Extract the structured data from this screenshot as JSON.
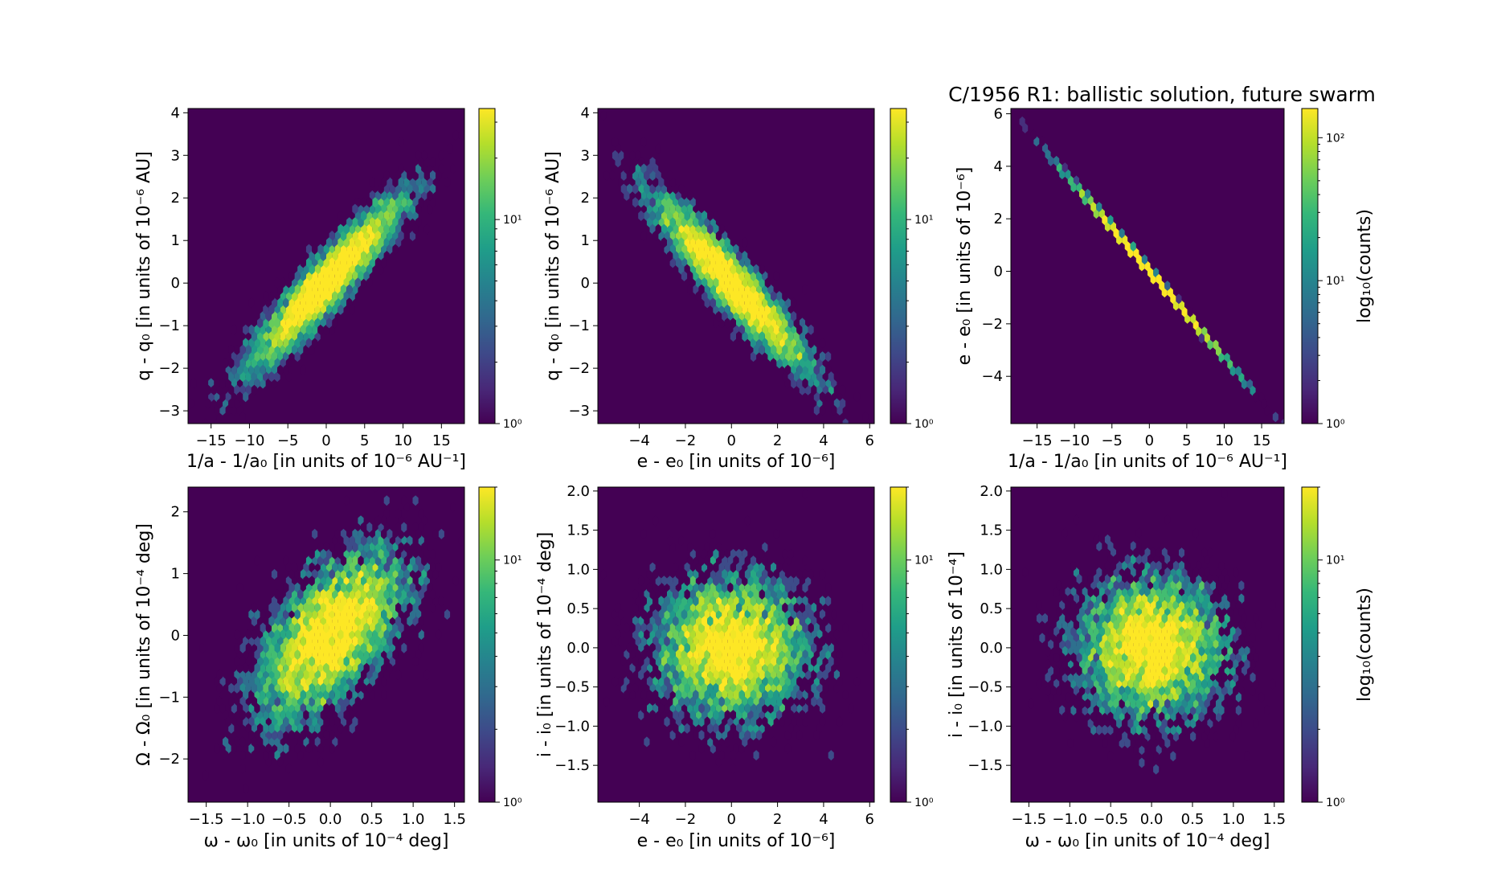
{
  "figure": {
    "title": "C/1956 R1:  ballistic solution, future swarm"
  },
  "colors": {
    "background": "#440154",
    "colormap": [
      "#440154",
      "#482878",
      "#3e4989",
      "#31688e",
      "#26828e",
      "#1f9e89",
      "#35b779",
      "#6ece58",
      "#b5de2b",
      "#fde725"
    ]
  },
  "chart_data": [
    {
      "type": "heatmap",
      "subtype": "hexbin",
      "panel": "top-left",
      "xlabel": "1/a - 1/a₀ [in units of 10⁻⁶ AU⁻¹]",
      "ylabel": "q - q₀ [in units of 10⁻⁶ AU]",
      "xlim": [
        -18,
        18
      ],
      "ylim": [
        -3.3,
        4.1
      ],
      "xticks": [
        -15,
        -10,
        -5,
        0,
        5,
        10,
        15
      ],
      "xtick_labels": [
        "−15",
        "−10",
        "−5",
        "0",
        "5",
        "10",
        "15"
      ],
      "yticks": [
        -3,
        -2,
        -1,
        0,
        1,
        2,
        3,
        4
      ],
      "ytick_labels": [
        "−3",
        "−2",
        "−1",
        "0",
        "1",
        "2",
        "3",
        "4"
      ],
      "distribution": {
        "x_mean": 0,
        "y_mean": 0,
        "x_sd": 5.0,
        "y_sd": 1.0,
        "correlation": 0.93
      },
      "colorbar": {
        "scale": "log",
        "min": 1,
        "max": 35,
        "ticks": [
          1,
          10
        ],
        "tick_labels": [
          "10⁰",
          "10¹"
        ],
        "label": ""
      }
    },
    {
      "type": "heatmap",
      "subtype": "hexbin",
      "panel": "top-middle",
      "xlabel": "e - e₀ [in units of 10⁻⁶]",
      "ylabel": "q - q₀ [in units of 10⁻⁶ AU]",
      "xlim": [
        -5.8,
        6.2
      ],
      "ylim": [
        -3.3,
        4.1
      ],
      "xticks": [
        -4,
        -2,
        0,
        2,
        4,
        6
      ],
      "xtick_labels": [
        "−4",
        "−2",
        "0",
        "2",
        "4",
        "6"
      ],
      "yticks": [
        -3,
        -2,
        -1,
        0,
        1,
        2,
        3,
        4
      ],
      "ytick_labels": [
        "−3",
        "−2",
        "−1",
        "0",
        "1",
        "2",
        "3",
        "4"
      ],
      "distribution": {
        "x_mean": 0,
        "y_mean": 0,
        "x_sd": 1.65,
        "y_sd": 1.0,
        "correlation": -0.93
      },
      "colorbar": {
        "scale": "log",
        "min": 1,
        "max": 35,
        "ticks": [
          1,
          10
        ],
        "tick_labels": [
          "10⁰",
          "10¹"
        ],
        "label": ""
      }
    },
    {
      "type": "heatmap",
      "subtype": "hexbin",
      "panel": "top-right",
      "xlabel": "1/a - 1/a₀ [in units of 10⁻⁶ AU⁻¹]",
      "ylabel": "e - e₀ [in units of 10⁻⁶]",
      "xlim": [
        -18.5,
        18
      ],
      "ylim": [
        -5.8,
        6.2
      ],
      "xticks": [
        -15,
        -10,
        -5,
        0,
        5,
        10,
        15
      ],
      "xtick_labels": [
        "−15",
        "−10",
        "−5",
        "0",
        "5",
        "10",
        "15"
      ],
      "yticks": [
        -4,
        -2,
        0,
        2,
        4,
        6
      ],
      "ytick_labels": [
        "−4",
        "−2",
        "0",
        "2",
        "4",
        "6"
      ],
      "distribution": {
        "x_mean": 0,
        "y_mean": 0,
        "x_sd": 5.0,
        "y_sd": 1.65,
        "correlation": -1.0
      },
      "colorbar": {
        "scale": "log",
        "min": 1,
        "max": 160,
        "ticks": [
          1,
          10,
          100
        ],
        "tick_labels": [
          "10⁰",
          "10¹",
          "10²"
        ],
        "label": "log₁₀(counts)"
      }
    },
    {
      "type": "heatmap",
      "subtype": "hexbin",
      "panel": "bottom-left",
      "xlabel": "ω - ω₀ [in units of 10⁻⁴ deg]",
      "ylabel": "Ω - Ω₀ [in units of 10⁻⁴ deg]",
      "xlim": [
        -1.72,
        1.62
      ],
      "ylim": [
        -2.7,
        2.4
      ],
      "xticks": [
        -1.5,
        -1.0,
        -0.5,
        0.0,
        0.5,
        1.0,
        1.5
      ],
      "xtick_labels": [
        "−1.5",
        "−1.0",
        "−0.5",
        "0.0",
        "0.5",
        "1.0",
        "1.5"
      ],
      "yticks": [
        -2,
        -1,
        0,
        1,
        2
      ],
      "ytick_labels": [
        "−2",
        "−1",
        "0",
        "1",
        "2"
      ],
      "distribution": {
        "x_mean": 0,
        "y_mean": 0,
        "x_sd": 0.45,
        "y_sd": 0.7,
        "correlation": 0.6
      },
      "colorbar": {
        "scale": "log",
        "min": 1,
        "max": 20,
        "ticks": [
          1,
          10
        ],
        "tick_labels": [
          "10⁰",
          "10¹"
        ],
        "label": ""
      }
    },
    {
      "type": "heatmap",
      "subtype": "hexbin",
      "panel": "bottom-middle",
      "xlabel": "e - e₀ [in units of 10⁻⁶]",
      "ylabel": "i - i₀ [in units of 10⁻⁴ deg]",
      "xlim": [
        -5.8,
        6.2
      ],
      "ylim": [
        -1.97,
        2.05
      ],
      "xticks": [
        -4,
        -2,
        0,
        2,
        4,
        6
      ],
      "xtick_labels": [
        "−4",
        "−2",
        "0",
        "2",
        "4",
        "6"
      ],
      "yticks": [
        -1.5,
        -1.0,
        -0.5,
        0.0,
        0.5,
        1.0,
        1.5,
        2.0
      ],
      "ytick_labels": [
        "−1.5",
        "−1.0",
        "−0.5",
        "0.0",
        "0.5",
        "1.0",
        "1.5",
        "2.0"
      ],
      "distribution": {
        "x_mean": 0,
        "y_mean": 0,
        "x_sd": 1.65,
        "y_sd": 0.45,
        "correlation": 0.0
      },
      "colorbar": {
        "scale": "log",
        "min": 1,
        "max": 20,
        "ticks": [
          1,
          10
        ],
        "tick_labels": [
          "10⁰",
          "10¹"
        ],
        "label": ""
      }
    },
    {
      "type": "heatmap",
      "subtype": "hexbin",
      "panel": "bottom-right",
      "xlabel": "ω - ω₀ [in units of 10⁻⁴ deg]",
      "ylabel": "i - i₀ [in units of 10⁻⁴]",
      "xlim": [
        -1.72,
        1.62
      ],
      "ylim": [
        -1.97,
        2.05
      ],
      "xticks": [
        -1.5,
        -1.0,
        -0.5,
        0.0,
        0.5,
        1.0,
        1.5
      ],
      "xtick_labels": [
        "−1.5",
        "−1.0",
        "−0.5",
        "0.0",
        "0.5",
        "1.0",
        "1.5"
      ],
      "yticks": [
        -1.5,
        -1.0,
        -0.5,
        0.0,
        0.5,
        1.0,
        1.5,
        2.0
      ],
      "ytick_labels": [
        "−1.5",
        "−1.0",
        "−0.5",
        "0.0",
        "0.5",
        "1.0",
        "1.5",
        "2.0"
      ],
      "distribution": {
        "x_mean": 0,
        "y_mean": 0,
        "x_sd": 0.45,
        "y_sd": 0.45,
        "correlation": 0.0
      },
      "colorbar": {
        "scale": "log",
        "min": 1,
        "max": 20,
        "ticks": [
          1,
          10
        ],
        "tick_labels": [
          "10⁰",
          "10¹"
        ],
        "label": "log₁₀(counts)"
      }
    }
  ]
}
